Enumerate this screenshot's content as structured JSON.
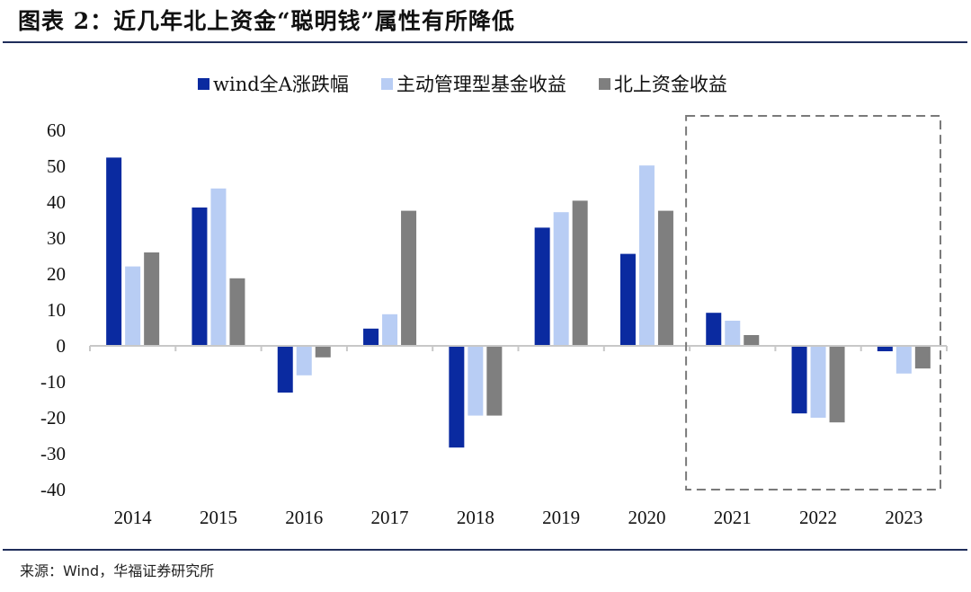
{
  "header": {
    "title": "图表 2：近几年北上资金“聪明钱”属性有所降低"
  },
  "footer": {
    "source": "来源：Wind，华福证券研究所"
  },
  "colors": {
    "wind": "#0a2aa0",
    "fund": "#b8cdf4",
    "north": "#7f7f7f",
    "rule": "#1f2d5a",
    "axis": "#c8c8c8",
    "highlight_box": "#7a7a7a"
  },
  "chart_data": {
    "type": "bar",
    "title": "近几年北上资金“聪明钱”属性有所降低",
    "xlabel": "",
    "ylabel": "",
    "categories": [
      "2014",
      "2015",
      "2016",
      "2017",
      "2018",
      "2019",
      "2020",
      "2021",
      "2022",
      "2023"
    ],
    "series": [
      {
        "name": "wind全A涨跌幅",
        "color_key": "wind",
        "values": [
          52.4,
          38.5,
          -13.0,
          4.8,
          -28.3,
          32.9,
          25.6,
          9.2,
          -18.8,
          -1.5
        ]
      },
      {
        "name": "主动管理型基金收益",
        "color_key": "fund",
        "values": [
          22.1,
          43.8,
          -8.2,
          8.8,
          -19.4,
          37.2,
          50.2,
          7.0,
          -20.0,
          -7.7
        ]
      },
      {
        "name": "北上资金收益",
        "color_key": "north",
        "values": [
          26.0,
          18.8,
          -3.2,
          37.6,
          -19.4,
          40.4,
          37.6,
          3.0,
          -21.3,
          -6.3
        ]
      }
    ],
    "ylim": [
      -40,
      60
    ],
    "yticks": [
      60,
      50,
      40,
      30,
      20,
      10,
      0,
      -10,
      -20,
      -30,
      -40
    ],
    "grid": false,
    "legend_position": "top-center",
    "annotations": [
      {
        "type": "dashed-box",
        "covers_categories": [
          "2021",
          "2022",
          "2023"
        ]
      }
    ]
  }
}
